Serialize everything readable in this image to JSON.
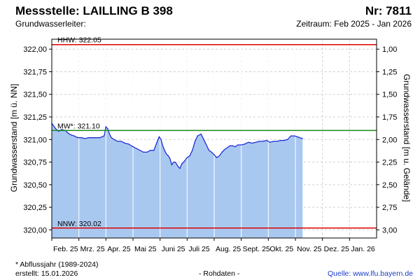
{
  "header": {
    "station": "Messstelle: LAILLING B 398",
    "number": "Nr: 7811",
    "aquifer": "Grundwasserleiter:",
    "period": "Zeitraum: Feb 2025 - Jan 2026"
  },
  "footer": {
    "footnote": "* Abflussjahr (1989-2024)",
    "created": "erstellt:  15.01.2026",
    "rawdata": "- Rohdaten -",
    "source": "Quelle:  www.lfu.bayern.de"
  },
  "colors": {
    "area": "#a9c8f0",
    "line": "#1f2fd6",
    "reference_high_low": "#dd0000",
    "reference_mean": "#1a8a1a",
    "grid": "#cfcfcf"
  },
  "chart_data": {
    "type": "area",
    "ylabel_left": "Grundwasserstand [m ü. NN]",
    "ylabel_right": "Grundwasserstand [m u. Gelände]",
    "ylim": [
      319.91,
      322.11
    ],
    "yticks_left": [
      "322,00",
      "321,75",
      "321,50",
      "321,25",
      "321,00",
      "320,75",
      "320,50",
      "320,25",
      "320,00"
    ],
    "yticks_right": [
      "1,00",
      "1,25",
      "1,50",
      "1,75",
      "2,00",
      "2,25",
      "2,50",
      "2,75",
      "3,00"
    ],
    "xticks": [
      "Feb. 25",
      "Mrz. 25",
      "Apr. 25",
      "Mai 25",
      "Juni 25",
      "Juli 25",
      "Aug. 25",
      "Sept. 25",
      "Okt. 25",
      "Nov. 25",
      "Dez. 25",
      "Jan. 26"
    ],
    "grid": true,
    "reference_lines": [
      {
        "label": "HHW: 322.05",
        "value": 322.05
      },
      {
        "label": "MW*: 321.10",
        "value": 321.1
      },
      {
        "label": "NNW: 320.02",
        "value": 320.02
      }
    ],
    "series": [
      {
        "x": [
          "2025-02-01",
          "2025-02-05",
          "2025-02-08",
          "2025-02-11",
          "2025-02-15",
          "2025-02-18",
          "2025-02-21",
          "2025-02-24",
          "2025-02-28",
          "2025-03-04",
          "2025-03-08",
          "2025-03-12",
          "2025-03-16",
          "2025-03-20",
          "2025-03-25",
          "2025-03-30",
          "2025-04-01",
          "2025-04-03",
          "2025-04-05",
          "2025-04-07",
          "2025-04-10",
          "2025-04-14",
          "2025-04-18",
          "2025-04-22",
          "2025-04-26",
          "2025-05-01",
          "2025-05-05",
          "2025-05-09",
          "2025-05-13",
          "2025-05-17",
          "2025-05-21",
          "2025-05-25",
          "2025-05-28",
          "2025-05-31",
          "2025-06-02",
          "2025-06-04",
          "2025-06-06",
          "2025-06-08",
          "2025-06-10",
          "2025-06-12",
          "2025-06-14",
          "2025-06-16",
          "2025-06-18",
          "2025-06-21",
          "2025-06-23",
          "2025-06-25",
          "2025-06-28",
          "2025-07-01",
          "2025-07-04",
          "2025-07-07",
          "2025-07-10",
          "2025-07-13",
          "2025-07-17",
          "2025-07-20",
          "2025-07-23",
          "2025-07-26",
          "2025-07-29",
          "2025-08-01",
          "2025-08-04",
          "2025-08-07",
          "2025-08-10",
          "2025-08-13",
          "2025-08-16",
          "2025-08-19",
          "2025-08-22",
          "2025-08-25",
          "2025-08-28",
          "2025-09-01",
          "2025-09-05",
          "2025-09-09",
          "2025-09-13",
          "2025-09-17",
          "2025-09-21",
          "2025-09-25",
          "2025-09-29",
          "2025-10-03",
          "2025-10-07",
          "2025-10-11",
          "2025-10-15",
          "2025-10-19",
          "2025-10-23",
          "2025-10-27",
          "2025-10-31",
          "2025-11-03",
          "2025-11-06",
          "2025-11-09"
        ],
        "values": [
          321.18,
          321.12,
          321.09,
          321.11,
          321.1,
          321.07,
          321.05,
          321.04,
          321.02,
          321.02,
          321.01,
          321.02,
          321.02,
          321.02,
          321.02,
          321.04,
          321.14,
          321.12,
          321.06,
          321.02,
          321.0,
          320.98,
          320.98,
          320.96,
          320.95,
          320.92,
          320.9,
          320.88,
          320.86,
          320.86,
          320.88,
          320.88,
          320.96,
          321.03,
          321.0,
          320.93,
          320.88,
          320.84,
          320.82,
          320.79,
          320.72,
          320.75,
          320.75,
          320.7,
          320.68,
          320.73,
          320.76,
          320.8,
          320.82,
          320.88,
          320.98,
          321.04,
          321.06,
          321.0,
          320.94,
          320.88,
          320.86,
          320.83,
          320.8,
          320.82,
          320.86,
          320.89,
          320.91,
          320.93,
          320.93,
          320.92,
          320.94,
          320.94,
          320.95,
          320.97,
          320.96,
          320.97,
          320.98,
          320.98,
          320.99,
          320.97,
          320.98,
          320.98,
          320.99,
          320.99,
          321.0,
          321.04,
          321.04,
          321.03,
          321.02,
          321.01
        ]
      }
    ]
  }
}
